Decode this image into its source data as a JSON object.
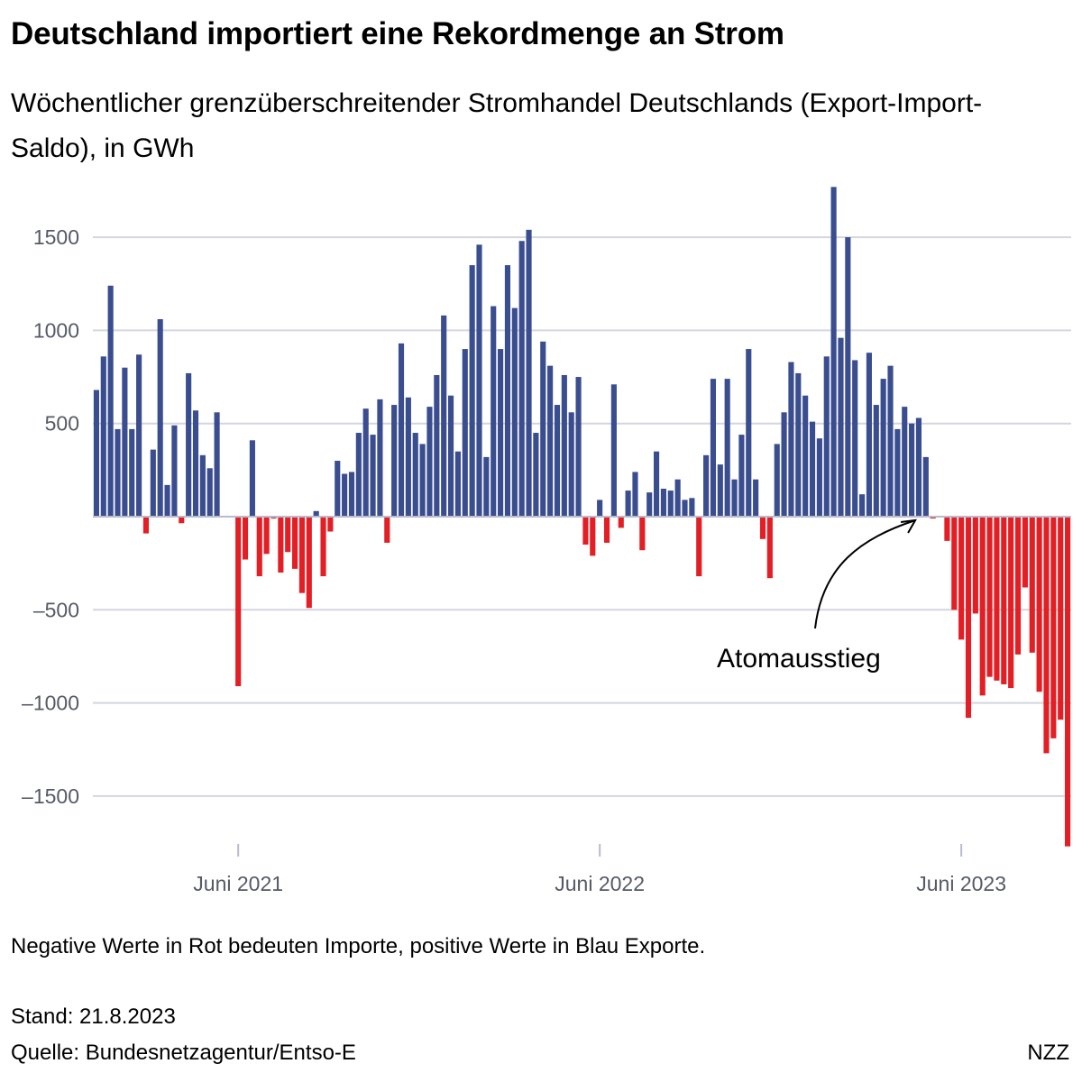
{
  "chart_data": {
    "type": "bar",
    "title": "Deutschland importiert eine Rekordmenge an Strom",
    "subtitle": "Wöchentlicher grenzüberschreitender Stromhandel Deutschlands (Export-Import-Saldo), in GWh",
    "unit": "GWh",
    "ylim": [
      -1780,
      1770
    ],
    "yticks": [
      1500,
      1000,
      500,
      -500,
      -1000,
      -1500
    ],
    "ytick_labels": [
      "1500",
      "1000",
      "500",
      "–500",
      "–1000",
      "–1500"
    ],
    "xticks": [
      {
        "label": "Juni 2021",
        "index": 20
      },
      {
        "label": "Juni 2022",
        "index": 71
      },
      {
        "label": "Juni 2023",
        "index": 122
      }
    ],
    "grid": true,
    "colors": {
      "positive": "#3a4d8f",
      "negative": "#e31e24",
      "grid": "#d4d6e0",
      "axis": "#b7bccc"
    },
    "values": [
      680,
      860,
      1240,
      470,
      800,
      470,
      870,
      -90,
      360,
      1060,
      170,
      490,
      -35,
      770,
      570,
      330,
      260,
      560,
      0,
      0,
      -910,
      -230,
      410,
      -320,
      -200,
      -10,
      -300,
      -190,
      -280,
      -410,
      -490,
      30,
      -320,
      -80,
      300,
      230,
      240,
      450,
      580,
      440,
      630,
      -140,
      600,
      930,
      640,
      450,
      390,
      590,
      760,
      1080,
      650,
      350,
      900,
      1350,
      1460,
      320,
      1130,
      900,
      1350,
      1120,
      1480,
      1540,
      450,
      940,
      810,
      600,
      760,
      560,
      750,
      -150,
      -210,
      90,
      -140,
      710,
      -60,
      140,
      240,
      -180,
      130,
      350,
      150,
      140,
      200,
      90,
      100,
      -320,
      330,
      740,
      280,
      740,
      200,
      440,
      900,
      200,
      -120,
      -330,
      390,
      560,
      830,
      770,
      650,
      510,
      420,
      860,
      1770,
      960,
      1500,
      840,
      120,
      880,
      600,
      740,
      810,
      470,
      590,
      500,
      530,
      320,
      -10,
      0,
      -130,
      -500,
      -660,
      -1080,
      -520,
      -960,
      -860,
      -880,
      -900,
      -920,
      -740,
      -380,
      -730,
      -940,
      -1270,
      -1190,
      -1090,
      -1770
    ]
  },
  "annotation": {
    "text": "Atomausstieg",
    "index": 115
  },
  "footer": {
    "note": "Negative Werte in Rot bedeuten Importe, positive Werte in Blau Exporte.",
    "stand": "Stand: 21.8.2023",
    "source": "Quelle: Bundesnetzagentur/Entso-E",
    "brand": "NZZ"
  }
}
